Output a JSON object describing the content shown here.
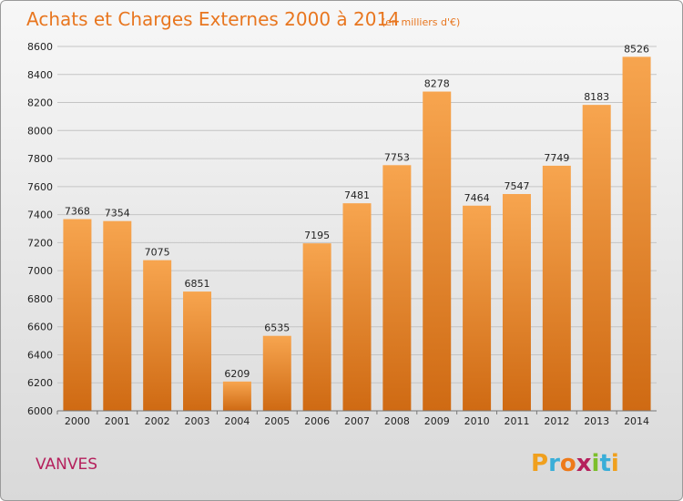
{
  "chart_data": {
    "type": "bar",
    "title": "Achats et Charges Externes 2000 à 2014",
    "subtitle": "(en milliers d'€)",
    "categories": [
      "2000",
      "2001",
      "2002",
      "2003",
      "2004",
      "2005",
      "2006",
      "2007",
      "2008",
      "2009",
      "2010",
      "2011",
      "2012",
      "2013",
      "2014"
    ],
    "values": [
      7368,
      7354,
      7075,
      6851,
      6209,
      6535,
      7195,
      7481,
      7753,
      8278,
      7464,
      7547,
      7749,
      8183,
      8526
    ],
    "ylim": [
      6000,
      8600
    ],
    "yticks": [
      6000,
      6200,
      6400,
      6600,
      6800,
      7000,
      7200,
      7400,
      7600,
      7800,
      8000,
      8200,
      8400,
      8600
    ],
    "grid": true,
    "colors": {
      "bar_top": "#f7a54f",
      "bar_bottom": "#cf6a13",
      "title": "#e8761f"
    }
  },
  "footer": {
    "city": "VANVES",
    "logo_letters": [
      "P",
      "r",
      "o",
      "x",
      "i",
      "t",
      "i"
    ],
    "logo_colors": [
      "#f0a01e",
      "#3aaed8",
      "#ee7a1a",
      "#b5205c",
      "#7cbf2c",
      "#3aaed8",
      "#f0a01e"
    ]
  }
}
